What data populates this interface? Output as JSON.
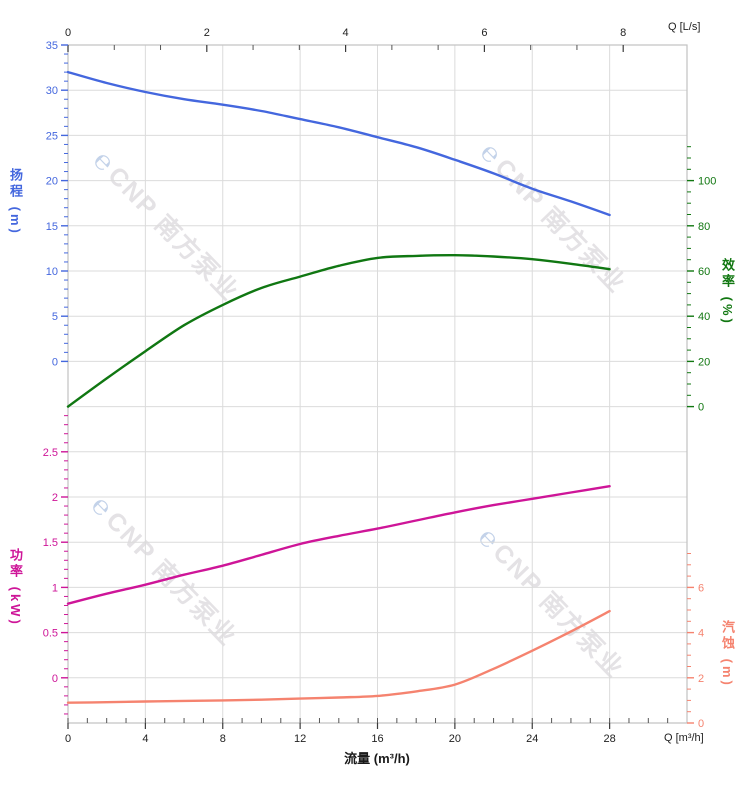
{
  "watermark": {
    "logo_char": "℮",
    "text": "CNP 南方泵业"
  },
  "axis_titles": {
    "head": "扬程 (m)",
    "efficiency": "效率 (%)",
    "power": "功率 (kW)",
    "npsh": "汽蚀 (m)",
    "flow_bottom": "流量 (m³/h)",
    "flow_top_unit": "Q [L/s]",
    "flow_bottom_unit": "Q [m³/h]"
  },
  "chart_data": {
    "type": "line",
    "x_flow_m3h": [
      0,
      2,
      4,
      6,
      8,
      10,
      12,
      14,
      16,
      18,
      20,
      22,
      24,
      26,
      28
    ],
    "series": [
      {
        "id": "head",
        "name": "扬程",
        "unit": "m",
        "axis": "head",
        "color": "#4467DE",
        "values": [
          32,
          30.8,
          29.8,
          29.0,
          28.4,
          27.7,
          26.8,
          25.9,
          24.8,
          23.7,
          22.3,
          20.8,
          19.1,
          17.7,
          16.2
        ]
      },
      {
        "id": "efficiency",
        "name": "效率",
        "unit": "%",
        "axis": "eff",
        "color": "#107712",
        "values": [
          0,
          12.5,
          24.5,
          36,
          45,
          52.5,
          57.5,
          62.3,
          65.8,
          66.7,
          67,
          66.4,
          65.2,
          63.2,
          60.8
        ]
      },
      {
        "id": "power",
        "name": "功率",
        "unit": "kW",
        "axis": "power",
        "color": "#CE1598",
        "values": [
          0.82,
          0.93,
          1.03,
          1.14,
          1.24,
          1.36,
          1.48,
          1.57,
          1.65,
          1.74,
          1.83,
          1.91,
          1.98,
          2.05,
          2.12
        ]
      },
      {
        "id": "npsh",
        "name": "汽蚀",
        "unit": "m",
        "axis": "npsh",
        "color": "#F5836F",
        "values": [
          0.9,
          0.92,
          0.95,
          0.98,
          1.0,
          1.03,
          1.08,
          1.13,
          1.2,
          1.4,
          1.7,
          2.4,
          3.2,
          4.05,
          4.95
        ]
      }
    ],
    "axes": {
      "x_bottom": {
        "title": "流量 (m³/h)",
        "unit": "m³/h",
        "major_ticks": [
          0,
          4,
          8,
          12,
          16,
          20,
          24,
          28
        ],
        "minor_step": 1,
        "range": [
          0,
          32
        ]
      },
      "x_top": {
        "unit": "L/s",
        "major_ticks": [
          0,
          2,
          4,
          6,
          8
        ],
        "minors_between_majors": 2,
        "range": [
          0,
          8.92
        ]
      },
      "y_head": {
        "title": "扬程 (m)",
        "major_ticks": [
          35,
          30,
          25,
          20,
          15,
          10,
          5,
          0
        ],
        "minor_step": 1,
        "range": [
          0,
          35
        ],
        "color": "#4467DE"
      },
      "y_eff": {
        "title": "效率 (%)",
        "major_ticks": [
          100,
          80,
          60,
          40,
          20,
          0
        ],
        "minor_step": 5,
        "minor_max": 115,
        "range": [
          0,
          100
        ],
        "color": "#117711"
      },
      "y_power": {
        "title": "功率 (kW)",
        "major_tick_labels": [
          "2.5",
          "2",
          "1.5",
          "1",
          "0.5",
          "0"
        ],
        "major_ticks": [
          2.5,
          2,
          1.5,
          1,
          0.5,
          0
        ],
        "minor_step": 0.1,
        "range": [
          0,
          2.5
        ],
        "color": "#CE1598"
      },
      "y_npsh": {
        "title": "汽蚀 (m)",
        "major_ticks": [
          6,
          4,
          2,
          0
        ],
        "minor_step": 0.5,
        "minor_max": 7.5,
        "range": [
          0,
          6
        ],
        "color": "#F5836F"
      }
    },
    "grid": true,
    "legend_position": "none",
    "colors": {
      "grid": "#dbdbdb",
      "frame": "#c2c2c2",
      "tick": "#3a3a3a",
      "x_label": "#222222"
    }
  }
}
